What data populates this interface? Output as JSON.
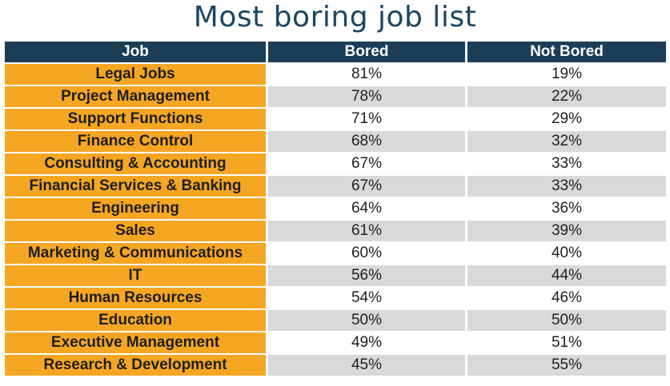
{
  "title": "Most boring job list",
  "colors": {
    "title": "#1e4660",
    "header_bg": "#1b3d56",
    "job_cell_bg": "#f5a623",
    "row_alt_bg": "#d9d9d9",
    "row_bg": "#ffffff"
  },
  "chart_data": {
    "type": "table",
    "title": "Most boring job list",
    "columns": [
      "Job",
      "Bored",
      "Not Bored"
    ],
    "rows": [
      {
        "job": "Legal Jobs",
        "bored": "81%",
        "not_bored": "19%"
      },
      {
        "job": "Project Management",
        "bored": "78%",
        "not_bored": "22%"
      },
      {
        "job": "Support Functions",
        "bored": "71%",
        "not_bored": "29%"
      },
      {
        "job": "Finance Control",
        "bored": "68%",
        "not_bored": "32%"
      },
      {
        "job": "Consulting & Accounting",
        "bored": "67%",
        "not_bored": "33%"
      },
      {
        "job": "Financial Services & Banking",
        "bored": "67%",
        "not_bored": "33%"
      },
      {
        "job": "Engineering",
        "bored": "64%",
        "not_bored": "36%"
      },
      {
        "job": "Sales",
        "bored": "61%",
        "not_bored": "39%"
      },
      {
        "job": "Marketing & Communications",
        "bored": "60%",
        "not_bored": "40%"
      },
      {
        "job": "IT",
        "bored": "56%",
        "not_bored": "44%"
      },
      {
        "job": "Human Resources",
        "bored": "54%",
        "not_bored": "46%"
      },
      {
        "job": "Education",
        "bored": "50%",
        "not_bored": "50%"
      },
      {
        "job": "Executive Management",
        "bored": "49%",
        "not_bored": "51%"
      },
      {
        "job": "Research & Development",
        "bored": "45%",
        "not_bored": "55%"
      }
    ]
  }
}
